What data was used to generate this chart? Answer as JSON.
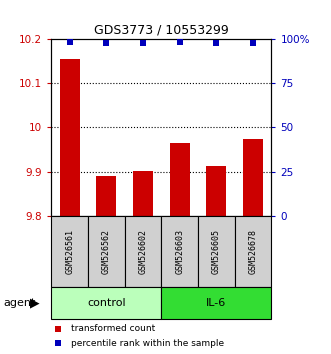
{
  "title": "GDS3773 / 10553299",
  "samples": [
    "GSM526561",
    "GSM526562",
    "GSM526602",
    "GSM526603",
    "GSM526605",
    "GSM526678"
  ],
  "bar_values": [
    10.155,
    9.89,
    9.902,
    9.965,
    9.912,
    9.975
  ],
  "percentile_values": [
    98.5,
    97.5,
    97.5,
    98.5,
    97.5,
    97.5
  ],
  "ylim_left": [
    9.8,
    10.2
  ],
  "yticks_left": [
    9.8,
    9.9,
    10.0,
    10.1,
    10.2
  ],
  "yticklabels_left": [
    "9.8",
    "9.9",
    "10",
    "10.1",
    "10.2"
  ],
  "ylim_right": [
    0,
    100
  ],
  "yticks_right": [
    0,
    25,
    50,
    75,
    100
  ],
  "yticklabels_right": [
    "0",
    "25",
    "50",
    "75",
    "100%"
  ],
  "bar_color": "#cc0000",
  "dot_color": "#0000bb",
  "bar_bottom": 9.8,
  "groups": [
    {
      "label": "control",
      "indices": [
        0,
        1,
        2
      ],
      "color": "#bbffbb"
    },
    {
      "label": "IL-6",
      "indices": [
        3,
        4,
        5
      ],
      "color": "#33dd33"
    }
  ],
  "agent_label": "agent",
  "legend_items": [
    {
      "color": "#cc0000",
      "label": "transformed count"
    },
    {
      "color": "#0000bb",
      "label": "percentile rank within the sample"
    }
  ],
  "bar_width": 0.55
}
